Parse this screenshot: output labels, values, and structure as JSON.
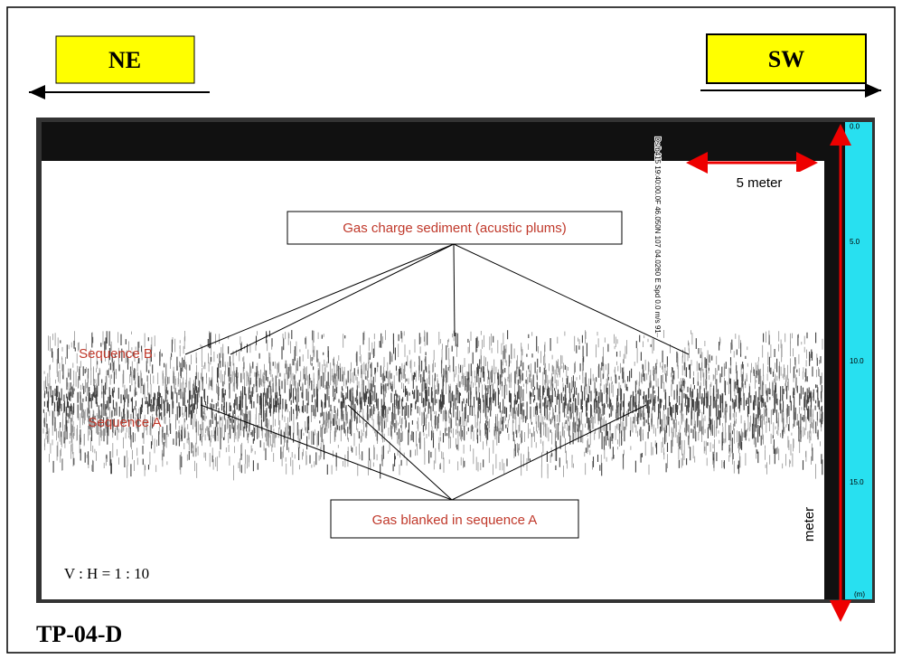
{
  "header": {
    "left_direction": "NE",
    "right_direction": "SW"
  },
  "profile": {
    "scale_bar": "5 meter",
    "gas_charge_label": "Gas charge sediment (acustic plums)",
    "sequence_b": "Sequence B",
    "sequence_a": "Sequence A",
    "gas_blanked_label": "Gas blanked in sequence A",
    "ratio": "V : H = 1 : 10",
    "depth_axis_label": "meter",
    "depth_ticks": [
      "0.0",
      "5.0",
      "10.0",
      "15.0",
      "(m)"
    ],
    "fix_annotation": "Ds/b415 19:40:00.0F 46.050N 107 04.0260 E Spd 0.0 m/s 91"
  },
  "footer": {
    "title": "TP-04-D"
  }
}
